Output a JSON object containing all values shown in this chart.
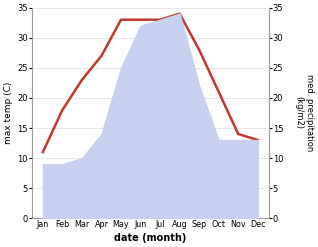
{
  "months": [
    "Jan",
    "Feb",
    "Mar",
    "Apr",
    "May",
    "Jun",
    "Jul",
    "Aug",
    "Sep",
    "Oct",
    "Nov",
    "Dec"
  ],
  "temperature": [
    11,
    18,
    23,
    27,
    33,
    33,
    33,
    34,
    28,
    21,
    14,
    13
  ],
  "precipitation": [
    9,
    9,
    10,
    14,
    25,
    32,
    33,
    34,
    22,
    13,
    13,
    13
  ],
  "temp_color": "#c0392b",
  "precip_fill_color": "#c8d0f0",
  "precip_edge_color": "#b0bce8",
  "temp_ylim": [
    0,
    35
  ],
  "precip_ylim": [
    0,
    35
  ],
  "yticks": [
    0,
    5,
    10,
    15,
    20,
    25,
    30,
    35
  ],
  "xlabel": "date (month)",
  "ylabel_left": "max temp (C)",
  "ylabel_right": "med. precipitation\n(kg/m2)",
  "bg_color": "#ffffff",
  "spine_color": "#999999",
  "grid_color": "#dddddd"
}
